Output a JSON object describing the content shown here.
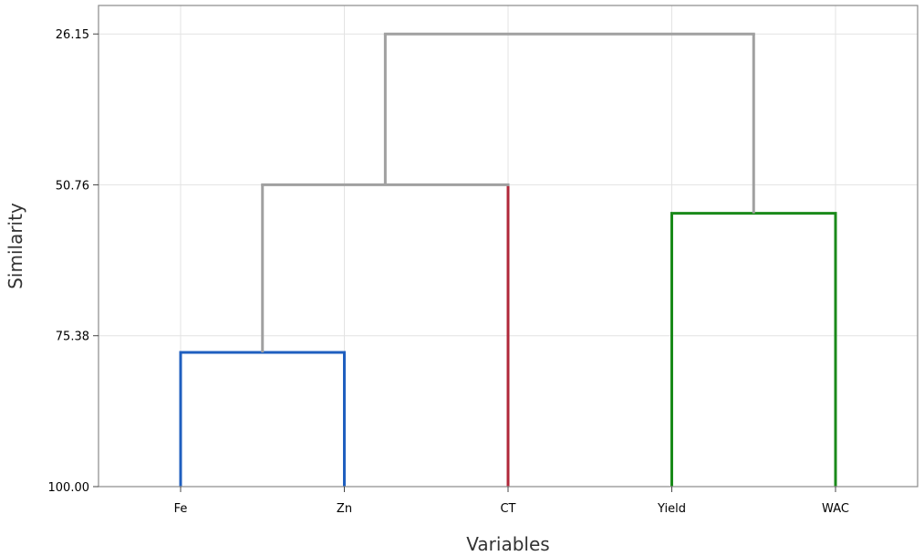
{
  "chart_data": {
    "type": "dendrogram",
    "xlabel": "Variables",
    "ylabel": "Similarity",
    "y_ticks": [
      "26.15",
      "50.76",
      "75.38",
      "100.00"
    ],
    "ylim": [
      21.5,
      100
    ],
    "y_inverted": true,
    "grid": true,
    "leaves": [
      "Fe",
      "Zn",
      "CT",
      "Yield",
      "WAC"
    ],
    "merges": [
      {
        "left": "Fe",
        "right": "Zn",
        "similarity": 78.1,
        "color": "#1f5fbf"
      },
      {
        "left": "Yield",
        "right": "WAC",
        "similarity": 55.4,
        "color": "#1a8a1a"
      },
      {
        "left": "Fe+Zn",
        "right": "CT",
        "similarity": 50.76,
        "color": "#a0a0a0"
      },
      {
        "left": "Fe+Zn+CT",
        "right": "Yield+WAC",
        "similarity": 26.15,
        "color": "#a0a0a0"
      }
    ],
    "leaf_colors": {
      "Fe": "#1f5fbf",
      "Zn": "#1f5fbf",
      "CT": "#b0283a",
      "Yield": "#1a8a1a",
      "WAC": "#1a8a1a"
    },
    "grid_color": "#e3e3e3",
    "frame_color": "#8a8a8a"
  }
}
